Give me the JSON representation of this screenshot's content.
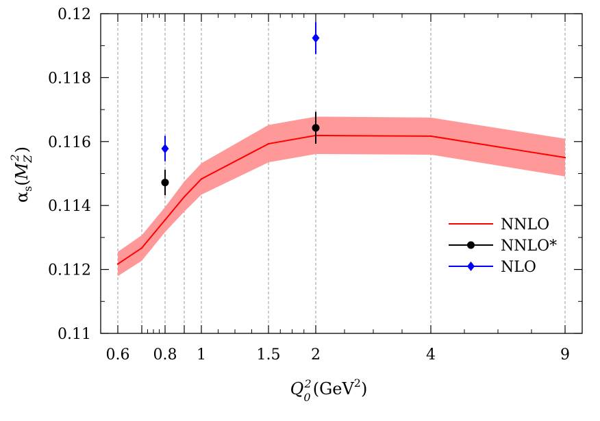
{
  "chart_data": {
    "type": "line",
    "xlabel": "Q_0^2(GeV^2)",
    "ylabel": "α_s(M_Z^2)",
    "x_categories": [
      "0.6",
      "0.7",
      "0.8",
      "0.9",
      "1",
      "1.5",
      "2",
      "4",
      "9"
    ],
    "x_tick_labels": [
      "0.6",
      "0.8",
      "1",
      "1.5",
      "2",
      "4",
      "9"
    ],
    "y_ticks": [
      "0.11",
      "0.112",
      "0.114",
      "0.116",
      "0.118",
      "0.12"
    ],
    "ylim": [
      0.11,
      0.12
    ],
    "grid": "vertical dashed lines at each x point",
    "legend_position": "right",
    "series": [
      {
        "name": "NNLO",
        "kind": "band-line",
        "color": "#ff0000",
        "band_color": "#ff9999",
        "x": [
          "0.6",
          "0.7",
          "0.8",
          "0.9",
          "1",
          "1.5",
          "2",
          "4",
          "9"
        ],
        "values": [
          0.11217,
          0.11267,
          0.11355,
          0.11427,
          0.11483,
          0.11593,
          0.11619,
          0.11617,
          0.1155
        ],
        "upper": [
          0.11255,
          0.11307,
          0.11395,
          0.11475,
          0.11532,
          0.11652,
          0.11678,
          0.11675,
          0.11609
        ],
        "lower": [
          0.11179,
          0.11227,
          0.11317,
          0.11381,
          0.11434,
          0.11535,
          0.11561,
          0.11559,
          0.11491
        ]
      },
      {
        "name": "NNLO*",
        "kind": "points",
        "color": "#000000",
        "marker": "circle",
        "x": [
          "0.8",
          "2"
        ],
        "values": [
          0.11472,
          0.11643
        ],
        "error": [
          0.0004,
          0.0005
        ]
      },
      {
        "name": "NLO",
        "kind": "points",
        "color": "#0000ff",
        "marker": "diamond",
        "x": [
          "0.8",
          "2"
        ],
        "values": [
          0.11578,
          0.11924
        ],
        "error": [
          0.0004,
          0.0005
        ]
      }
    ]
  }
}
